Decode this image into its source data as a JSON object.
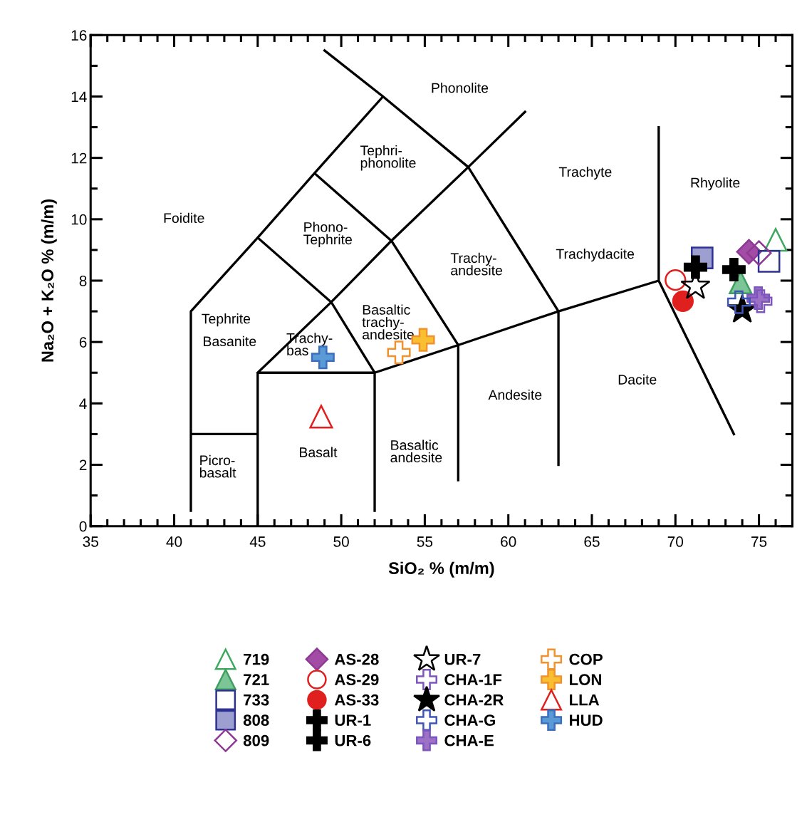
{
  "chart_data": {
    "type": "scatter",
    "xlabel": "SiO₂ % (m/m)",
    "ylabel": "Na₂O + K₂O % (m/m)",
    "xlim": [
      35,
      77
    ],
    "ylim": [
      0,
      16
    ],
    "xticks": [
      35,
      {
        "value": 36,
        "label": null
      },
      {
        "value": 37,
        "label": null
      },
      {
        "value": 38,
        "label": null
      },
      {
        "value": 39,
        "label": null
      },
      40,
      {
        "value": 41,
        "label": null
      },
      {
        "value": 42,
        "label": null
      },
      {
        "value": 43,
        "label": null
      },
      {
        "value": 44,
        "label": null
      },
      45,
      {
        "value": 46,
        "label": null
      },
      {
        "value": 47,
        "label": null
      },
      {
        "value": 48,
        "label": null
      },
      {
        "value": 49,
        "label": null
      },
      50,
      {
        "value": 51,
        "label": null
      },
      {
        "value": 52,
        "label": null
      },
      {
        "value": 53,
        "label": null
      },
      {
        "value": 54,
        "label": null
      },
      55,
      {
        "value": 56,
        "label": null
      },
      {
        "value": 57,
        "label": null
      },
      {
        "value": 58,
        "label": null
      },
      {
        "value": 59,
        "label": null
      },
      60,
      {
        "value": 61,
        "label": null
      },
      {
        "value": 62,
        "label": null
      },
      {
        "value": 63,
        "label": null
      },
      {
        "value": 64,
        "label": null
      },
      65,
      {
        "value": 66,
        "label": null
      },
      {
        "value": 67,
        "label": null
      },
      {
        "value": 68,
        "label": null
      },
      {
        "value": 69,
        "label": null
      },
      70,
      {
        "value": 71,
        "label": null
      },
      {
        "value": 72,
        "label": null
      },
      {
        "value": 73,
        "label": null
      },
      {
        "value": 74,
        "label": null
      },
      75,
      {
        "value": 76,
        "label": null
      }
    ],
    "yticks": [
      0,
      {
        "value": 1,
        "label": null
      },
      2,
      {
        "value": 3,
        "label": null
      },
      4,
      {
        "value": 5,
        "label": null
      },
      6,
      {
        "value": 7,
        "label": null
      },
      8,
      {
        "value": 9,
        "label": null
      },
      10,
      {
        "value": 11,
        "label": null
      },
      12,
      {
        "value": 13,
        "label": null
      },
      14,
      {
        "value": 15,
        "label": null
      },
      16
    ],
    "legend": "bottom",
    "series": [
      {
        "name": "719",
        "marker": "triangle",
        "color": "#3fa860",
        "x": [
          76.0
        ],
        "values": [
          9.33
        ]
      },
      {
        "name": "721",
        "marker": "triangle",
        "color": "#3f9e62",
        "colors": [
          "#7cc596"
        ],
        "x": [
          73.9
        ],
        "values": [
          7.94
        ]
      },
      {
        "name": "733",
        "marker": "square",
        "color": "#2e3192",
        "x": [
          75.6
        ],
        "values": [
          8.63
        ]
      },
      {
        "name": "808",
        "marker": "square",
        "color": "#2e3192",
        "colors": [
          "#9d9fd0"
        ],
        "x": [
          71.6
        ],
        "values": [
          8.74
        ]
      },
      {
        "name": "809",
        "marker": "diamond",
        "color": "#8e3a94",
        "x": [
          75.0
        ],
        "values": [
          8.9
        ]
      },
      {
        "name": "AS-28",
        "marker": "diamond",
        "color": "#8e3a94",
        "colors": [
          "#a24ca6"
        ],
        "x": [
          74.4
        ],
        "values": [
          8.94
        ]
      },
      {
        "name": "AS-29",
        "marker": "circle",
        "color": "#e0201e",
        "x": [
          70.0
        ],
        "values": [
          8.02
        ]
      },
      {
        "name": "AS-33",
        "marker": "circle",
        "color": "#e0201e",
        "colors": [
          "#e0201e"
        ],
        "x": [
          70.45
        ],
        "values": [
          7.33
        ]
      },
      {
        "name": "UR-1",
        "marker": "cross",
        "color": "#000000",
        "colors": [
          "#000000"
        ],
        "x": [
          73.5
        ],
        "values": [
          8.36
        ]
      },
      {
        "name": "UR-6",
        "marker": "cross",
        "color": "#000000",
        "colors": [
          "#000000"
        ],
        "x": [
          71.2
        ],
        "values": [
          8.44
        ]
      },
      {
        "name": "UR-7",
        "marker": "star",
        "color": "#000000",
        "x": [
          71.2
        ],
        "values": [
          7.82
        ]
      },
      {
        "name": "CHA-1F",
        "marker": "cross",
        "color": "#7d55bd",
        "x": [
          75.1
        ],
        "values": [
          7.33
        ]
      },
      {
        "name": "CHA-2R",
        "marker": "star",
        "color": "#000000",
        "colors": [
          "#000000"
        ],
        "x": [
          74.0
        ],
        "values": [
          7.05
        ]
      },
      {
        "name": "CHA-G",
        "marker": "cross",
        "color": "#3f55b8",
        "x": [
          73.8
        ],
        "values": [
          7.3
        ]
      },
      {
        "name": "CHA-E",
        "marker": "cross",
        "color": "#7d55bd",
        "colors": [
          "#9b72c6"
        ],
        "x": [
          74.96
        ],
        "values": [
          7.43
        ]
      },
      {
        "name": "COP",
        "marker": "cross",
        "color": "#f0922e",
        "x": [
          53.45
        ],
        "values": [
          5.66
        ]
      },
      {
        "name": "LON",
        "marker": "cross",
        "color": "#f0922e",
        "colors": [
          "#f8c030"
        ],
        "x": [
          54.9
        ],
        "values": [
          6.07
        ]
      },
      {
        "name": "LLA",
        "marker": "triangle",
        "color": "#e0201e",
        "x": [
          48.8
        ],
        "values": [
          3.57
        ]
      },
      {
        "name": "HUD",
        "marker": "cross",
        "color": "#3a6fc0",
        "colors": [
          "#5b9bd5"
        ],
        "x": [
          48.9
        ],
        "values": [
          5.5
        ]
      },
      {
        "type": "line",
        "color": "#000000",
        "x": [
          41,
          41,
          45,
          48.4,
          52.5,
          49.0,
          null,
          41,
          45,
          null,
          45,
          45,
          52,
          52,
          null,
          45,
          49.4,
          53,
          57.6,
          61,
          null,
          52,
          57,
          63,
          69,
          73.5,
          null,
          69,
          69,
          null,
          57,
          57,
          null,
          63,
          63,
          null,
          49.4,
          52,
          null,
          53,
          57,
          null,
          57.6,
          63,
          null,
          45,
          49.4,
          null,
          48.4,
          53,
          null,
          52.5,
          57.6
        ],
        "values": [
          0.5,
          7,
          9.4,
          11.5,
          14,
          15.5,
          null,
          3,
          3,
          null,
          0,
          5,
          5,
          0.5,
          null,
          5,
          7.3,
          9.3,
          11.7,
          13.5,
          null,
          5,
          5.9,
          7,
          8,
          3,
          null,
          8,
          13,
          null,
          1.5,
          5.9,
          null,
          2,
          7,
          null,
          7.3,
          5,
          null,
          9.3,
          5.9,
          null,
          11.7,
          7,
          null,
          9.4,
          7.3,
          null,
          11.5,
          9.3,
          null,
          14,
          11.7
        ]
      }
    ],
    "annotations": [
      "Phonolite",
      "Tephri-\nphonolite",
      "Foidite",
      "Phono-\nTephrite",
      "Trachyte",
      "Rhyolite",
      "Trachy-\nandesite",
      "Trachydacite",
      "Tephrite",
      "Basanite",
      "Basaltic\ntrachy-\nandesite",
      "Trachy-\nbas",
      "Andesite",
      "Dacite",
      "Picro-\nbasalt",
      "Basalt",
      "Basaltic\nandesite"
    ]
  }
}
